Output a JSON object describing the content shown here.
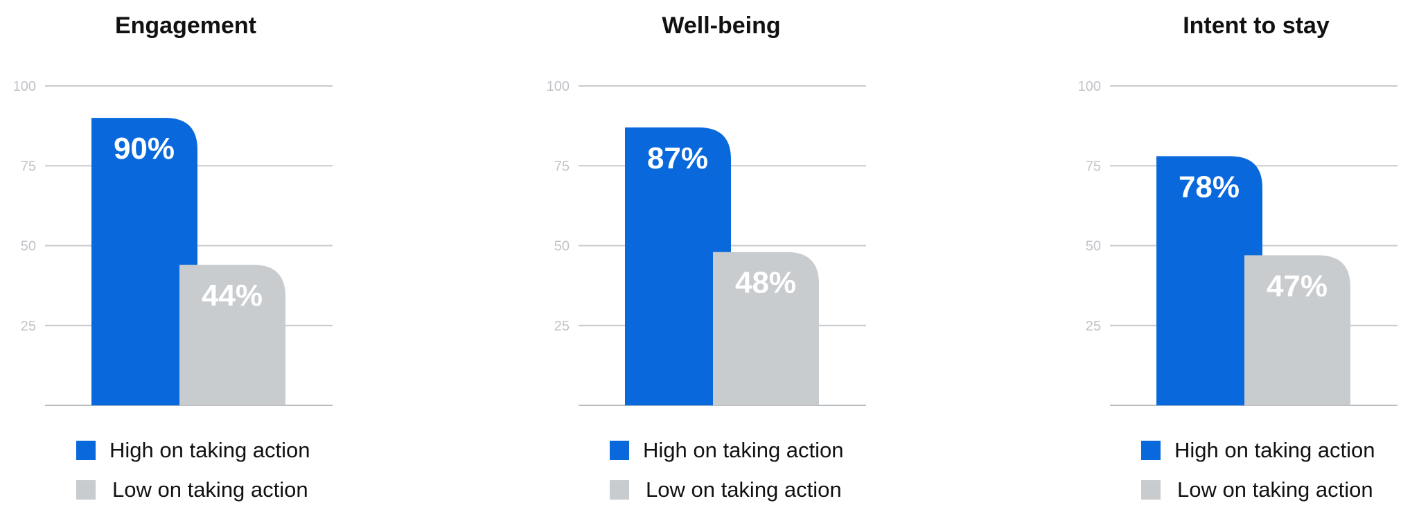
{
  "colors": {
    "high": "#0969dc",
    "low": "#c9cccf",
    "grid": "#c8cacd",
    "axis": "#b8bbbf"
  },
  "legend": {
    "high_label": "High on taking action",
    "low_label": "Low on taking action"
  },
  "chart_data": [
    {
      "type": "bar",
      "title": "Engagement",
      "categories": [
        "High on taking action",
        "Low on taking action"
      ],
      "values": [
        90,
        44
      ],
      "value_labels": [
        "90%",
        "44%"
      ],
      "ylim": [
        0,
        100
      ],
      "yticks": [
        25,
        50,
        75,
        100
      ],
      "grid": true,
      "legend_position": "bottom"
    },
    {
      "type": "bar",
      "title": "Well-being",
      "categories": [
        "High on taking action",
        "Low on taking action"
      ],
      "values": [
        87,
        48
      ],
      "value_labels": [
        "87%",
        "48%"
      ],
      "ylim": [
        0,
        100
      ],
      "yticks": [
        25,
        50,
        75,
        100
      ],
      "grid": true,
      "legend_position": "bottom"
    },
    {
      "type": "bar",
      "title": "Intent to stay",
      "categories": [
        "High on taking action",
        "Low on taking action"
      ],
      "values": [
        78,
        47
      ],
      "value_labels": [
        "78%",
        "47%"
      ],
      "ylim": [
        0,
        100
      ],
      "yticks": [
        25,
        50,
        75,
        100
      ],
      "grid": true,
      "legend_position": "bottom"
    }
  ]
}
